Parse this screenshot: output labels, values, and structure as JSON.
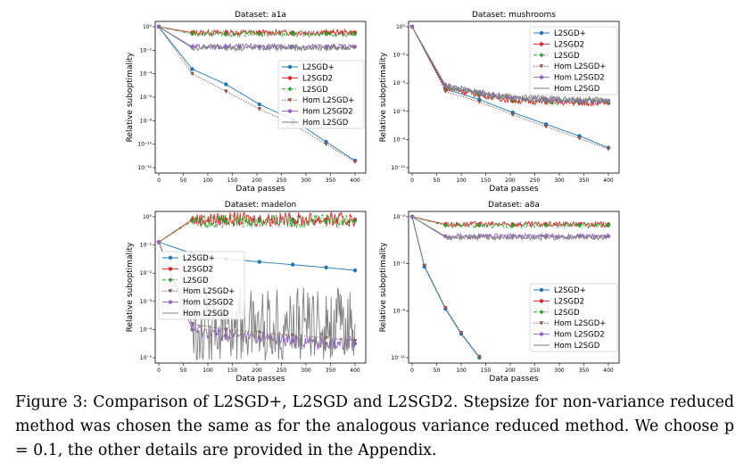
{
  "chart_data": [
    {
      "type": "line",
      "title": "Dataset: a1a",
      "xlabel": "Data passes",
      "ylabel": "Relative suboptimality",
      "xlim": [
        0,
        400
      ],
      "ylim_exp": [
        -12,
        0
      ],
      "y_scale": "log",
      "xticks": [
        "0",
        "50",
        "100",
        "150",
        "200",
        "250",
        "300",
        "350",
        "400"
      ],
      "yticks": [
        "10⁰",
        "10⁻²",
        "10⁻⁴",
        "10⁻⁶",
        "10⁻⁸",
        "10⁻¹⁰",
        "10⁻¹²"
      ],
      "legend_loc": "center-right",
      "series": [
        {
          "name": "L2SGD+",
          "color": "#1f77b4",
          "style": "solid",
          "marker": "circle",
          "x": [
            0,
            68,
            137,
            205,
            273,
            341,
            400
          ],
          "y": [
            0,
            -3.6,
            -4.9,
            -6.6,
            -7.9,
            -9.8,
            -11.4
          ]
        },
        {
          "name": "L2SGD2",
          "color": "#d62728",
          "style": "solid",
          "marker": "circle",
          "noisy": true,
          "x": [
            0,
            68,
            137,
            205,
            273,
            341,
            400
          ],
          "y": [
            0,
            -0.5,
            -0.5,
            -0.5,
            -0.5,
            -0.5,
            -0.5
          ]
        },
        {
          "name": "L2SGD",
          "color": "#2ca02c",
          "style": "dashdot",
          "marker": "diamond",
          "noisy": true,
          "x": [
            0,
            68,
            137,
            205,
            273,
            341,
            400
          ],
          "y": [
            0,
            -0.6,
            -0.6,
            -0.6,
            -0.6,
            -0.6,
            -0.6
          ]
        },
        {
          "name": "Hom L2SGD+",
          "color": "#8c564b",
          "style": "dotted",
          "marker": "triangle-down",
          "x": [
            0,
            68,
            137,
            205,
            273,
            341,
            400
          ],
          "y": [
            0,
            -4.0,
            -5.5,
            -7.0,
            -8.3,
            -10.0,
            -11.5
          ]
        },
        {
          "name": "Hom L2SGD2",
          "color": "#9467bd",
          "style": "solid",
          "marker": "circle",
          "noisy": true,
          "x": [
            0,
            68,
            137,
            205,
            273,
            341,
            400
          ],
          "y": [
            0,
            -1.7,
            -1.7,
            -1.7,
            -1.7,
            -1.7,
            -1.7
          ]
        },
        {
          "name": "Hom L2SGD",
          "color": "#7f7f7f",
          "style": "solid",
          "marker": "none",
          "noisy": true,
          "x": [
            0,
            68,
            137,
            205,
            273,
            341,
            400
          ],
          "y": [
            0,
            -1.8,
            -1.8,
            -1.8,
            -1.8,
            -1.8,
            -1.8
          ]
        }
      ]
    },
    {
      "type": "line",
      "title": "Dataset: mushrooms",
      "xlabel": "Data passes",
      "ylabel": "Relative suboptimality",
      "xlim": [
        0,
        400
      ],
      "ylim_exp": [
        -12,
        0
      ],
      "y_scale": "log",
      "xticks": [
        "0",
        "50",
        "100",
        "150",
        "200",
        "250",
        "300",
        "350",
        "400"
      ],
      "yticks": [
        "10⁰",
        "10⁻²",
        "10⁻⁴",
        "10⁻⁶",
        "10⁻⁸",
        "10⁻¹⁰"
      ],
      "legend_loc": "upper-right",
      "series": [
        {
          "name": "L2SGD+",
          "color": "#1f77b4",
          "style": "solid",
          "marker": "circle",
          "x": [
            0,
            68,
            137,
            205,
            273,
            341,
            400
          ],
          "y": [
            0,
            -5.3,
            -6.2,
            -7.3,
            -8.3,
            -9.3,
            -10.3
          ]
        },
        {
          "name": "L2SGD2",
          "color": "#d62728",
          "style": "solid",
          "marker": "circle",
          "noisy": true,
          "x": [
            0,
            68,
            137,
            205,
            273,
            341,
            400
          ],
          "y": [
            0,
            -5.2,
            -5.8,
            -6.3,
            -6.4,
            -6.5,
            -6.5
          ]
        },
        {
          "name": "L2SGD",
          "color": "#2ca02c",
          "style": "dashdot",
          "marker": "diamond",
          "noisy": true,
          "x": [
            0,
            68,
            137,
            205,
            273,
            341,
            400
          ],
          "y": [
            0,
            -5.1,
            -5.7,
            -6.2,
            -6.3,
            -6.4,
            -6.4
          ]
        },
        {
          "name": "Hom L2SGD+",
          "color": "#8c564b",
          "style": "dotted",
          "marker": "triangle-down",
          "x": [
            0,
            68,
            137,
            205,
            273,
            341,
            400
          ],
          "y": [
            0,
            -5.5,
            -6.4,
            -7.5,
            -8.5,
            -9.5,
            -10.4
          ]
        },
        {
          "name": "Hom L2SGD2",
          "color": "#9467bd",
          "style": "solid",
          "marker": "circle",
          "noisy": true,
          "x": [
            0,
            68,
            137,
            205,
            273,
            341,
            400
          ],
          "y": [
            0,
            -5.0,
            -5.6,
            -6.1,
            -6.2,
            -6.3,
            -6.3
          ]
        },
        {
          "name": "Hom L2SGD",
          "color": "#7f7f7f",
          "style": "solid",
          "marker": "none",
          "noisy": true,
          "x": [
            0,
            68,
            137,
            205,
            273,
            341,
            400
          ],
          "y": [
            0,
            -5.0,
            -5.6,
            -6.0,
            -6.1,
            -6.2,
            -6.2
          ]
        }
      ]
    },
    {
      "type": "line",
      "title": "Dataset: madelon",
      "xlabel": "Data passes",
      "ylabel": "Relative suboptimality",
      "xlim": [
        0,
        400
      ],
      "ylim_exp": [
        -5,
        0
      ],
      "y_scale": "log",
      "xticks": [
        "0",
        "50",
        "100",
        "150",
        "200",
        "250",
        "300",
        "350",
        "400"
      ],
      "yticks": [
        "10⁰",
        "10⁻¹",
        "10⁻²",
        "10⁻³",
        "10⁻⁴",
        "10⁻⁵"
      ],
      "legend_loc": "center-left",
      "series": [
        {
          "name": "L2SGD+",
          "color": "#1f77b4",
          "style": "solid",
          "marker": "circle",
          "x": [
            0,
            68,
            137,
            205,
            273,
            341,
            400
          ],
          "y": [
            -0.9,
            -1.3,
            -1.5,
            -1.6,
            -1.7,
            -1.8,
            -1.9
          ]
        },
        {
          "name": "L2SGD2",
          "color": "#d62728",
          "style": "solid",
          "marker": "circle",
          "noisy": true,
          "x": [
            0,
            68,
            137,
            205,
            273,
            341,
            400
          ],
          "y": [
            -0.9,
            -0.1,
            -0.1,
            -0.1,
            -0.1,
            -0.1,
            -0.1
          ]
        },
        {
          "name": "L2SGD",
          "color": "#2ca02c",
          "style": "dashdot",
          "marker": "diamond",
          "noisy": true,
          "x": [
            0,
            68,
            137,
            205,
            273,
            341,
            400
          ],
          "y": [
            -0.9,
            -0.15,
            -0.15,
            -0.15,
            -0.15,
            -0.15,
            -0.15
          ]
        },
        {
          "name": "Hom L2SGD+",
          "color": "#8c564b",
          "style": "dotted",
          "marker": "triangle-down",
          "x": [
            0,
            68,
            137,
            205,
            273,
            341,
            400
          ],
          "y": [
            -0.9,
            -3.8,
            -4.0,
            -4.1,
            -4.2,
            -4.3,
            -4.4
          ]
        },
        {
          "name": "Hom L2SGD2",
          "color": "#9467bd",
          "style": "solid",
          "marker": "circle",
          "noisy": true,
          "x": [
            0,
            68,
            137,
            205,
            273,
            341,
            400
          ],
          "y": [
            -0.9,
            -4.0,
            -4.2,
            -4.3,
            -4.4,
            -4.5,
            -4.5
          ]
        },
        {
          "name": "Hom L2SGD",
          "color": "#7f7f7f",
          "style": "solid",
          "marker": "none",
          "noisy": true,
          "x": [
            0,
            68,
            137,
            205,
            273,
            341,
            400
          ],
          "y": [
            -0.9,
            -3.8,
            -3.8,
            -3.8,
            -3.8,
            -3.8,
            -3.8
          ]
        }
      ]
    },
    {
      "type": "line",
      "title": "Dataset: a8a",
      "xlabel": "Data passes",
      "ylabel": "Relative suboptimality",
      "xlim": [
        0,
        400
      ],
      "ylim_exp": [
        -13,
        0
      ],
      "y_scale": "log",
      "xticks": [
        "0",
        "50",
        "100",
        "150",
        "200",
        "250",
        "300",
        "350",
        "400"
      ],
      "yticks": [
        "10⁻²",
        "10⁻⁵",
        "10⁻⁸",
        "10⁻¹¹"
      ],
      "legend_loc": "center-right",
      "series": [
        {
          "name": "L2SGD+",
          "color": "#1f77b4",
          "style": "solid",
          "marker": "circle",
          "x": [
            0,
            25,
            68,
            100,
            137
          ],
          "y": [
            0,
            -4.6,
            -8.5,
            -10.8,
            -13.0
          ]
        },
        {
          "name": "L2SGD2",
          "color": "#d62728",
          "style": "solid",
          "marker": "circle",
          "noisy": true,
          "x": [
            0,
            68,
            137,
            205,
            273,
            341,
            400
          ],
          "y": [
            0,
            -0.7,
            -0.7,
            -0.7,
            -0.7,
            -0.7,
            -0.7
          ]
        },
        {
          "name": "L2SGD",
          "color": "#2ca02c",
          "style": "dashdot",
          "marker": "diamond",
          "noisy": true,
          "x": [
            0,
            68,
            137,
            205,
            273,
            341,
            400
          ],
          "y": [
            0,
            -0.8,
            -0.8,
            -0.8,
            -0.8,
            -0.8,
            -0.8
          ]
        },
        {
          "name": "Hom L2SGD+",
          "color": "#8c564b",
          "style": "dotted",
          "marker": "triangle-down",
          "x": [
            0,
            25,
            68,
            100,
            137
          ],
          "y": [
            0,
            -4.5,
            -8.4,
            -10.7,
            -12.9
          ]
        },
        {
          "name": "Hom L2SGD2",
          "color": "#9467bd",
          "style": "solid",
          "marker": "circle",
          "noisy": true,
          "x": [
            0,
            68,
            137,
            205,
            273,
            341,
            400
          ],
          "y": [
            0,
            -1.8,
            -1.8,
            -1.8,
            -1.8,
            -1.8,
            -1.8
          ]
        },
        {
          "name": "Hom L2SGD",
          "color": "#7f7f7f",
          "style": "solid",
          "marker": "none",
          "noisy": true,
          "x": [
            0,
            68,
            137,
            205,
            273,
            341,
            400
          ],
          "y": [
            0,
            -1.9,
            -1.9,
            -1.9,
            -1.9,
            -1.9,
            -1.9
          ]
        }
      ]
    }
  ],
  "caption": {
    "label": "Figure 3:",
    "text": " Comparison of L2SGD+, L2SGD and L2SGD2. Stepsize for non-variance reduced method was chosen the same as for the analogous variance reduced method. We choose p = 0.1, the other details are provided in the Appendix."
  }
}
